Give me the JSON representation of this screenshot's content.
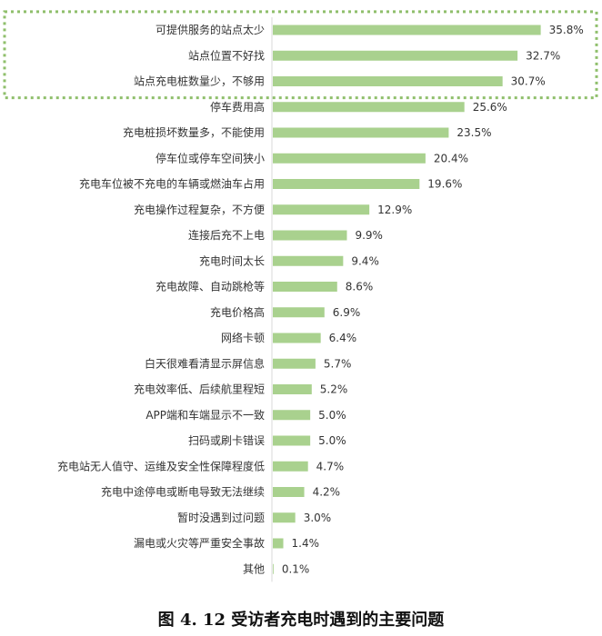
{
  "chart_data": {
    "type": "bar",
    "orientation": "horizontal",
    "categories": [
      "可提供服务的站点太少",
      "站点位置不好找",
      "站点充电桩数量少，不够用",
      "停车费用高",
      "充电桩损坏数量多，不能使用",
      "停车位或停车空间狭小",
      "充电车位被不充电的车辆或燃油车占用",
      "充电操作过程复杂，不方便",
      "连接后充不上电",
      "充电时间太长",
      "充电故障、自动跳枪等",
      "充电价格高",
      "网络卡顿",
      "白天很难看清显示屏信息",
      "充电效率低、后续航里程短",
      "APP端和车端显示不一致",
      "扫码或刷卡错误",
      "充电站无人值守、运维及安全性保障程度低",
      "充电中途停电或断电导致无法继续",
      "暂时没遇到过问题",
      "漏电或火灾等严重安全事故",
      "其他"
    ],
    "values": [
      35.8,
      32.7,
      30.7,
      25.6,
      23.5,
      20.4,
      19.6,
      12.9,
      9.9,
      9.4,
      8.6,
      6.9,
      6.4,
      5.7,
      5.2,
      5.0,
      5.0,
      4.7,
      4.2,
      3.0,
      1.4,
      0.1
    ],
    "value_labels": [
      "35.8%",
      "32.7%",
      "30.7%",
      "25.6%",
      "23.5%",
      "20.4%",
      "19.6%",
      "12.9%",
      "9.9%",
      "9.4%",
      "8.6%",
      "6.9%",
      "6.4%",
      "5.7%",
      "5.2%",
      "5.0%",
      "5.0%",
      "4.7%",
      "4.2%",
      "3.0%",
      "1.4%",
      "0.1%"
    ],
    "unit": "%",
    "xlim": [
      0,
      40
    ],
    "grid": false,
    "highlight_top_n": 3,
    "colors": {
      "bar": "#a9d18e",
      "axis": "#d9d9d9",
      "highlight_border": "#8fbf6b"
    }
  },
  "caption": "图 4. 12  受访者充电时遇到的主要问题"
}
